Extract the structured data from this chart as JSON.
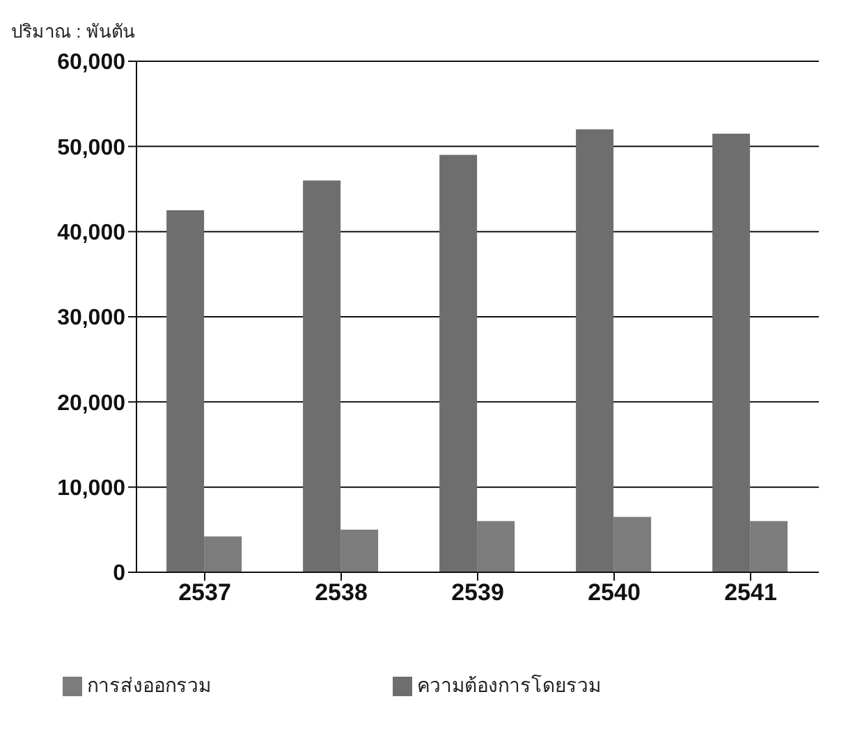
{
  "chart_data": {
    "type": "bar",
    "ylabel": "ปริมาณ : พันตัน",
    "categories": [
      "2537",
      "2538",
      "2539",
      "2540",
      "2541"
    ],
    "series": [
      {
        "name": "ความต้องการโดยรวม",
        "color": "#6e6e6e",
        "values": [
          42500,
          46000,
          49000,
          52000,
          51500
        ]
      },
      {
        "name": "การส่งออกรวม",
        "color": "#7c7c7c",
        "values": [
          4200,
          5000,
          6000,
          6500,
          6000
        ]
      }
    ],
    "ylim": [
      0,
      60000
    ],
    "yticks": [
      {
        "value": 0,
        "label": "0"
      },
      {
        "value": 10000,
        "label": "10,000"
      },
      {
        "value": 20000,
        "label": "20,000"
      },
      {
        "value": 30000,
        "label": "30,000"
      },
      {
        "value": 40000,
        "label": "40,000"
      },
      {
        "value": 50000,
        "label": "50,000"
      },
      {
        "value": 60000,
        "label": "60,000"
      }
    ],
    "grid": "y",
    "legend": "bottom"
  }
}
